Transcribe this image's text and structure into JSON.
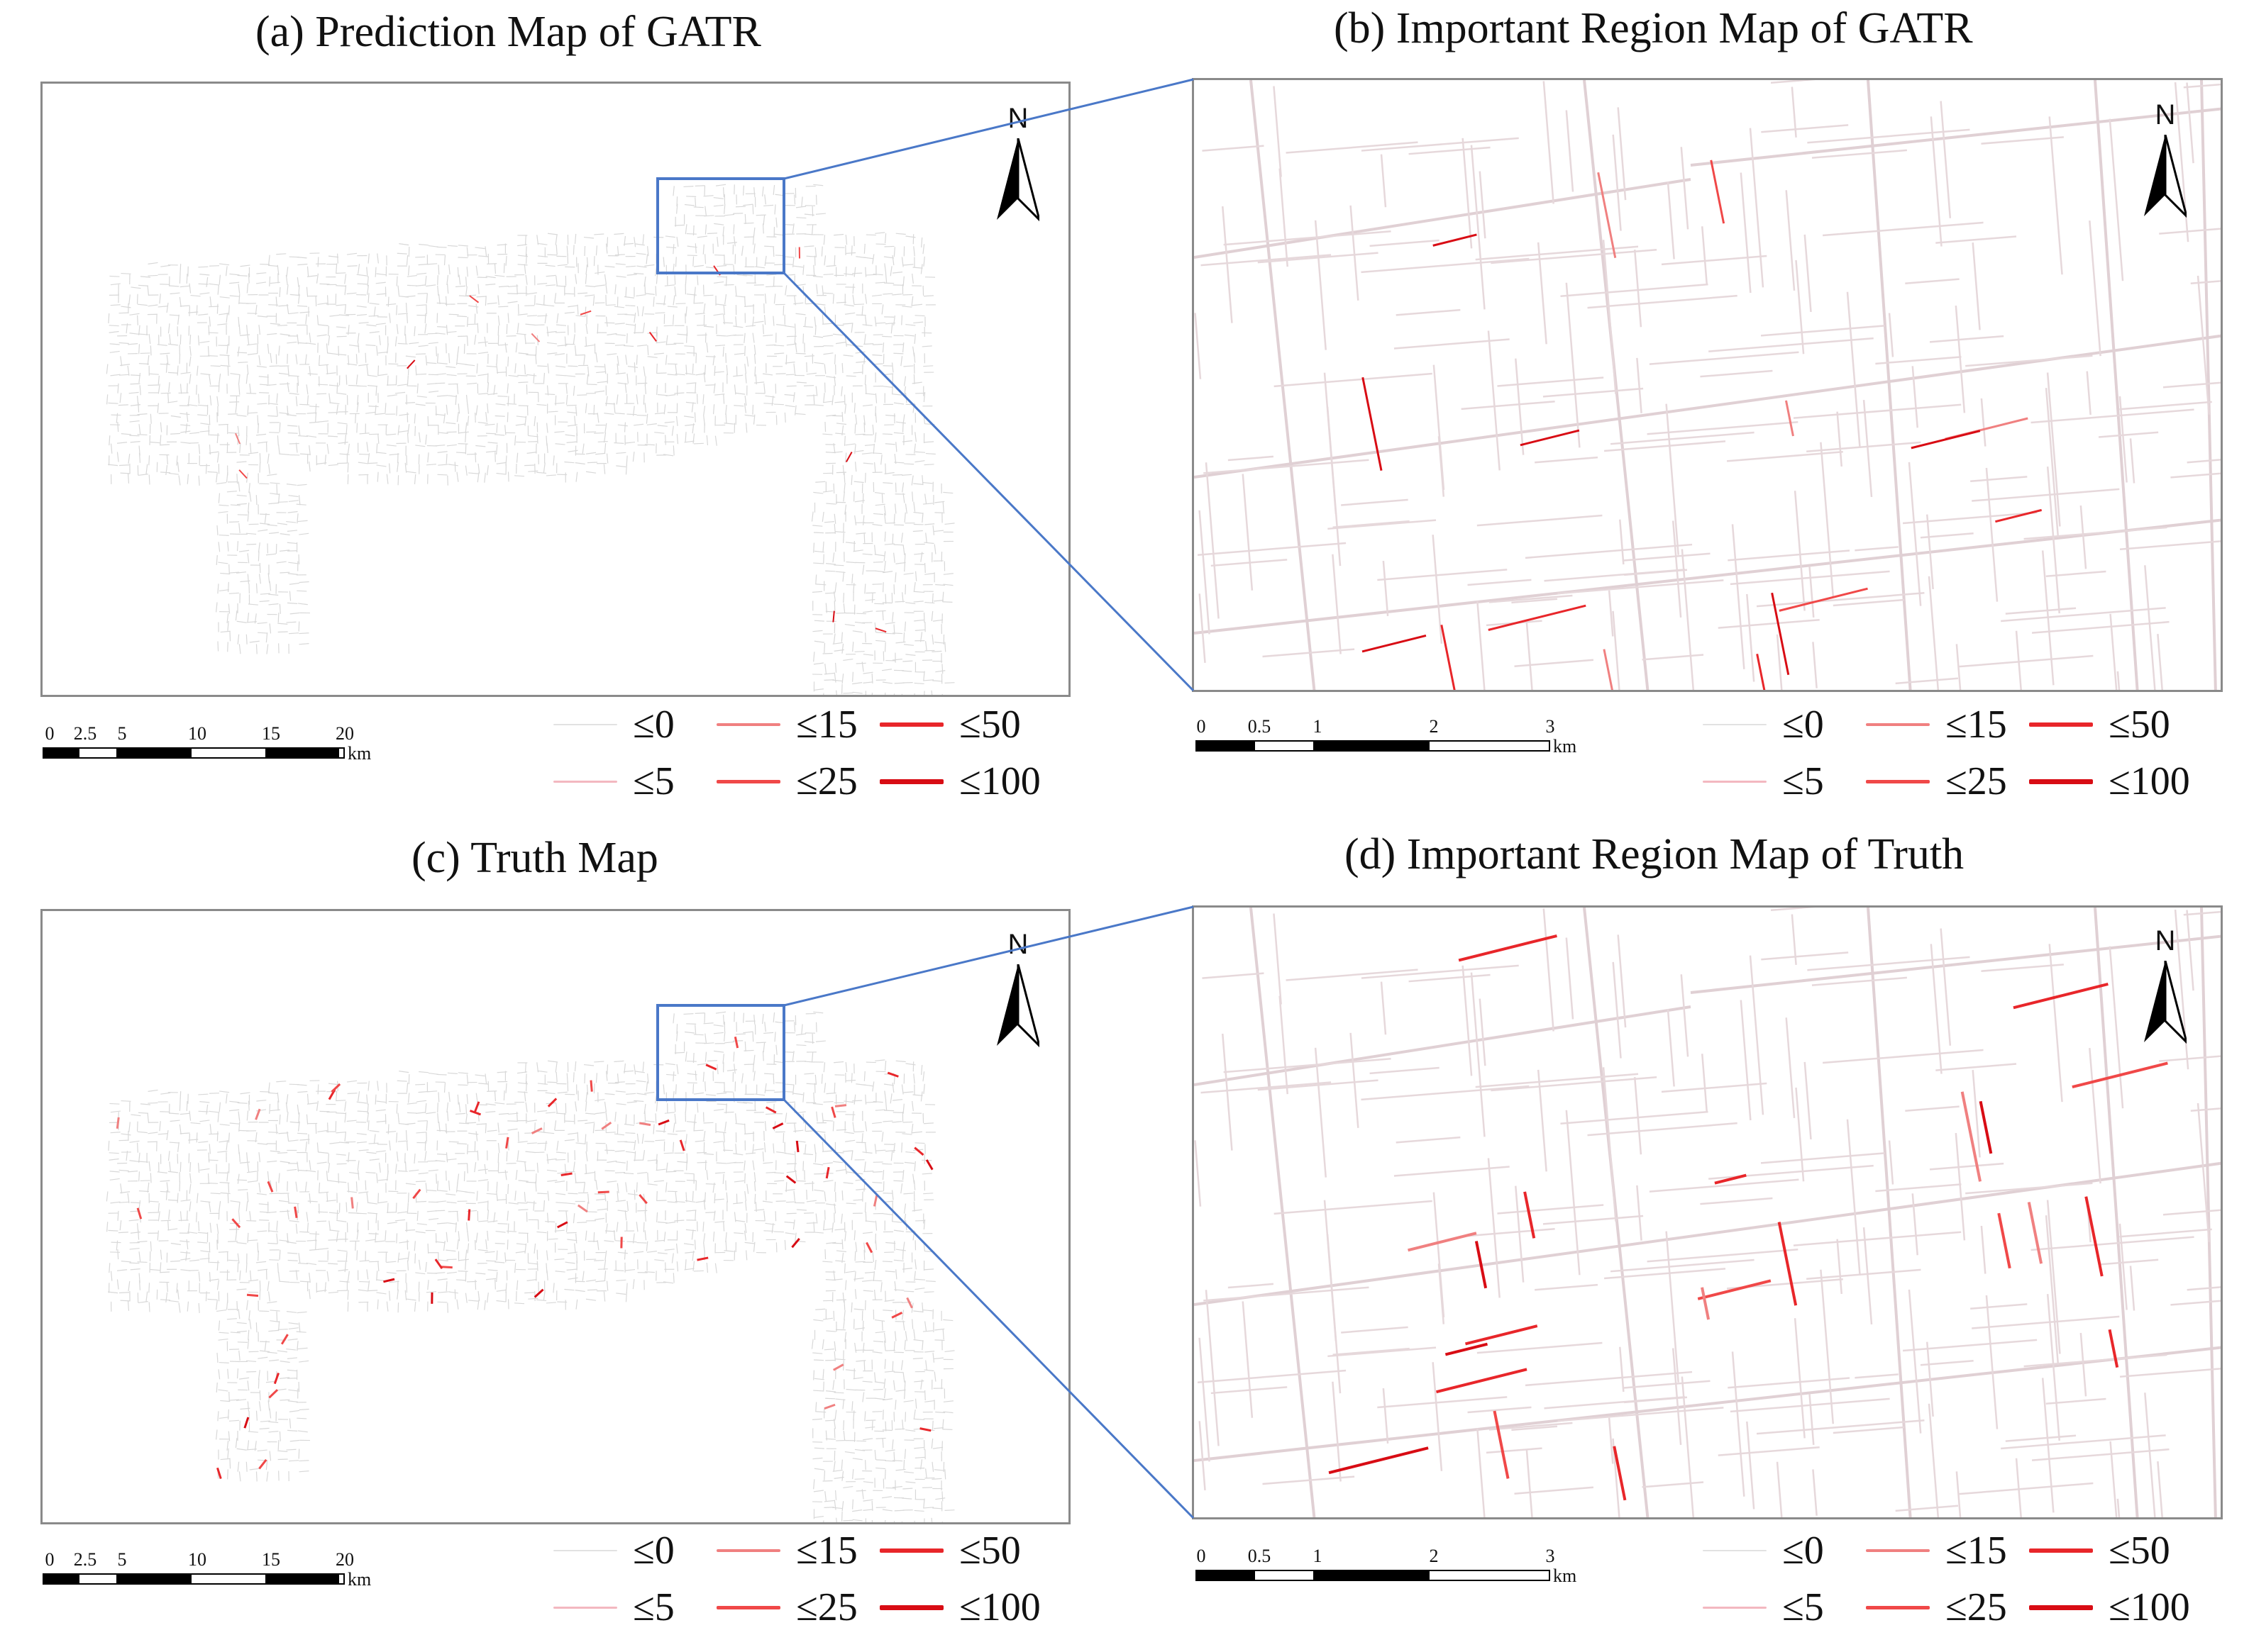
{
  "panels": {
    "a": {
      "title": "(a) Prediction Map of GATR"
    },
    "b": {
      "title": "(b) Important Region Map of GATR"
    },
    "c": {
      "title": "(c) Truth Map"
    },
    "d": {
      "title": "(d) Important Region Map of Truth"
    }
  },
  "north_label": "N",
  "scale_city": {
    "ticks": [
      "0",
      "2.5",
      "5",
      "10",
      "15",
      "20"
    ],
    "unit": "km"
  },
  "scale_zoom": {
    "ticks": [
      "0",
      "0.5",
      "1",
      "2",
      "3"
    ],
    "unit": "km"
  },
  "legend": [
    {
      "label": "≤0",
      "color": "#e2e2e2"
    },
    {
      "label": "≤15",
      "color": "#f08080"
    },
    {
      "label": "≤50",
      "color": "#e8262a"
    },
    {
      "label": "≤5",
      "color": "#f3b8c0"
    },
    {
      "label": "≤25",
      "color": "#f04848"
    },
    {
      "label": "≤100",
      "color": "#d80c14"
    }
  ],
  "colors": {
    "frame": "#8a8a8a",
    "zoom_box": "#4a78c8",
    "road": "#e2d3d6"
  }
}
